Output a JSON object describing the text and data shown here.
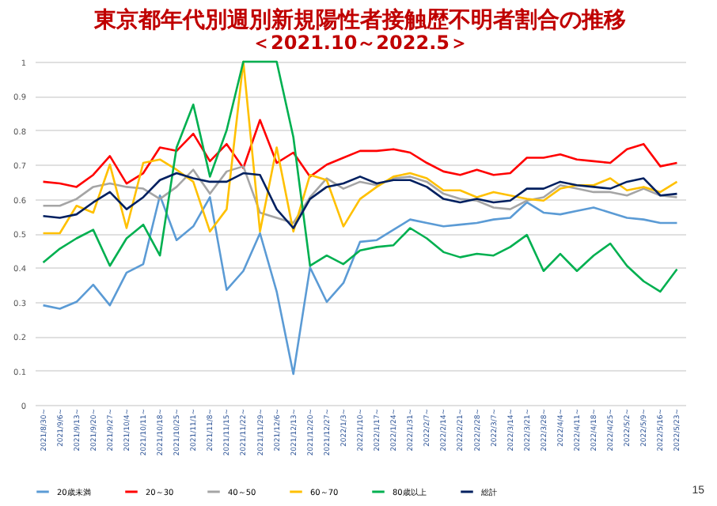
{
  "chart_data": {
    "type": "line",
    "title": "東京都年代別週別新規陽性者接触歴不明者割合の推移",
    "subtitle": "＜2021.10～2022.5＞",
    "categories": [
      "2021/8/30~",
      "2021/9/6~",
      "2021/9/13~",
      "2021/9/20~",
      "2021/9/27~",
      "2021/10/4~",
      "2021/10/11~",
      "2021/10/18~",
      "2021/10/25~",
      "2021/11/1~",
      "2021/11/8~",
      "2021/11/15~",
      "2021/11/22~",
      "2021/11/29~",
      "2021/12/6~",
      "2021/12/13~",
      "2021/12/20~",
      "2021/12/27~",
      "2022/1/3~",
      "2022/1/10~",
      "2022/1/17~",
      "2022/1/24~",
      "2022/1/31~",
      "2022/2/7~",
      "2022/2/14~",
      "2022/2/21~",
      "2022/2/28~",
      "2022/3/7~",
      "2022/3/14~",
      "2022/3/21~",
      "2022/3/28~",
      "2022/4/4~",
      "2022/4/11~",
      "2022/4/18~",
      "2022/4/25~",
      "2022/5/2~",
      "2022/5/9~",
      "2022/5/16~",
      "2022/5/23~"
    ],
    "series": [
      {
        "name": "20歳未満",
        "color": "#5b9bd5",
        "values": [
          0.29,
          0.28,
          0.3,
          0.35,
          0.29,
          0.385,
          0.41,
          0.61,
          0.48,
          0.52,
          0.605,
          0.335,
          0.39,
          0.5,
          0.33,
          0.09,
          0.4,
          0.3,
          0.355,
          0.475,
          0.48,
          0.51,
          0.54,
          0.53,
          0.52,
          0.525,
          0.53,
          0.54,
          0.545,
          0.59,
          0.56,
          0.555,
          0.565,
          0.575,
          0.56,
          0.545,
          0.54,
          0.53,
          0.53
        ]
      },
      {
        "name": "20～30",
        "color": "#ff0000",
        "values": [
          0.65,
          0.645,
          0.635,
          0.67,
          0.725,
          0.645,
          0.675,
          0.75,
          0.74,
          0.79,
          0.71,
          0.76,
          0.69,
          0.83,
          0.705,
          0.735,
          0.665,
          0.7,
          0.72,
          0.74,
          0.74,
          0.745,
          0.735,
          0.705,
          0.68,
          0.67,
          0.685,
          0.67,
          0.675,
          0.72,
          0.72,
          0.73,
          0.715,
          0.71,
          0.705,
          0.745,
          0.76,
          0.695,
          0.705
        ]
      },
      {
        "name": "40～50",
        "color": "#a5a5a5",
        "values": [
          0.58,
          0.58,
          0.6,
          0.635,
          0.645,
          0.635,
          0.63,
          0.6,
          0.635,
          0.685,
          0.615,
          0.68,
          0.695,
          0.56,
          0.545,
          0.53,
          0.605,
          0.66,
          0.63,
          0.65,
          0.64,
          0.66,
          0.665,
          0.65,
          0.615,
          0.6,
          0.595,
          0.575,
          0.57,
          0.595,
          0.605,
          0.64,
          0.63,
          0.62,
          0.62,
          0.61,
          0.63,
          0.61,
          0.605
        ]
      },
      {
        "name": "60～70",
        "color": "#ffc000",
        "values": [
          0.5,
          0.5,
          0.58,
          0.56,
          0.7,
          0.515,
          0.705,
          0.715,
          0.685,
          0.65,
          0.505,
          0.57,
          1.0,
          0.505,
          0.75,
          0.505,
          0.67,
          0.655,
          0.52,
          0.6,
          0.635,
          0.665,
          0.675,
          0.66,
          0.625,
          0.625,
          0.605,
          0.62,
          0.61,
          0.6,
          0.595,
          0.63,
          0.64,
          0.64,
          0.66,
          0.625,
          0.635,
          0.62,
          0.65
        ]
      },
      {
        "name": "80歳以上",
        "color": "#00b050",
        "values": [
          0.415,
          0.455,
          0.485,
          0.51,
          0.405,
          0.485,
          0.525,
          0.435,
          0.75,
          0.875,
          0.665,
          0.8,
          1.0,
          1.0,
          1.0,
          0.78,
          0.405,
          0.435,
          0.41,
          0.45,
          0.46,
          0.465,
          0.515,
          0.485,
          0.445,
          0.43,
          0.44,
          0.435,
          0.46,
          0.495,
          0.39,
          0.44,
          0.39,
          0.435,
          0.47,
          0.405,
          0.36,
          0.33,
          0.395
        ]
      },
      {
        "name": "総計",
        "color": "#002060",
        "values": [
          0.55,
          0.545,
          0.555,
          0.59,
          0.62,
          0.57,
          0.605,
          0.655,
          0.675,
          0.66,
          0.65,
          0.65,
          0.675,
          0.67,
          0.57,
          0.515,
          0.6,
          0.635,
          0.645,
          0.665,
          0.645,
          0.655,
          0.655,
          0.635,
          0.6,
          0.59,
          0.6,
          0.59,
          0.595,
          0.63,
          0.63,
          0.65,
          0.64,
          0.635,
          0.63,
          0.65,
          0.66,
          0.61,
          0.615
        ]
      }
    ],
    "ylim": [
      0,
      1
    ],
    "yticks": [
      0,
      0.1,
      0.2,
      0.3,
      0.4,
      0.5,
      0.6,
      0.7,
      0.8,
      0.9,
      1
    ],
    "grid": "y",
    "legend": "bottom",
    "line_style": "solid",
    "annotations": [
      "15"
    ]
  }
}
